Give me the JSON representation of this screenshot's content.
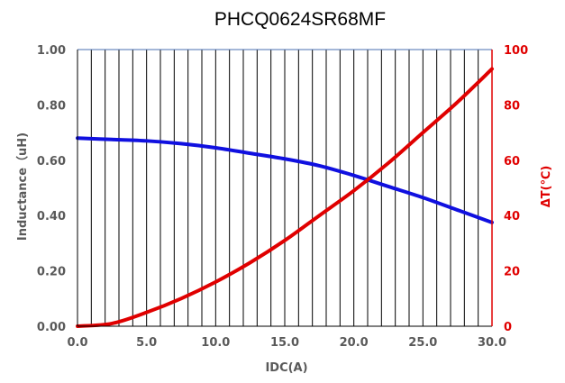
{
  "chart_data": {
    "type": "line",
    "title": "PHCQ0624SR68MF",
    "xlabel": "IDC(A)",
    "ylabel_left": "Inductance（uH)",
    "ylabel_right": "ΔT(℃)",
    "xlim": [
      0,
      30
    ],
    "ylim_left": [
      0,
      1
    ],
    "ylim_right": [
      0,
      100
    ],
    "x_ticks": [
      "0.0",
      "5.0",
      "10.0",
      "15.0",
      "20.0",
      "25.0",
      "30.0"
    ],
    "y_ticks_left": [
      "0.00",
      "0.20",
      "0.40",
      "0.60",
      "0.80",
      "1.00"
    ],
    "y_ticks_right": [
      "0",
      "20",
      "40",
      "60",
      "80",
      "100"
    ],
    "grid": "vertical",
    "series": [
      {
        "axis": "left",
        "color": "#1010e0",
        "x": [
          0,
          2.5,
          5,
          7.5,
          10,
          12.5,
          15,
          17.5,
          20,
          22.5,
          25,
          27.5,
          30
        ],
        "values": [
          0.68,
          0.675,
          0.67,
          0.66,
          0.645,
          0.625,
          0.605,
          0.58,
          0.545,
          0.505,
          0.465,
          0.42,
          0.375
        ]
      },
      {
        "axis": "right",
        "color": "#e00000",
        "x": [
          0,
          2.5,
          5,
          7.5,
          10,
          12.5,
          15,
          17.5,
          20,
          22.5,
          25,
          27.5,
          30
        ],
        "values": [
          0,
          1,
          5,
          10,
          16,
          23,
          31,
          40,
          49,
          59,
          70,
          81,
          93
        ]
      }
    ]
  }
}
